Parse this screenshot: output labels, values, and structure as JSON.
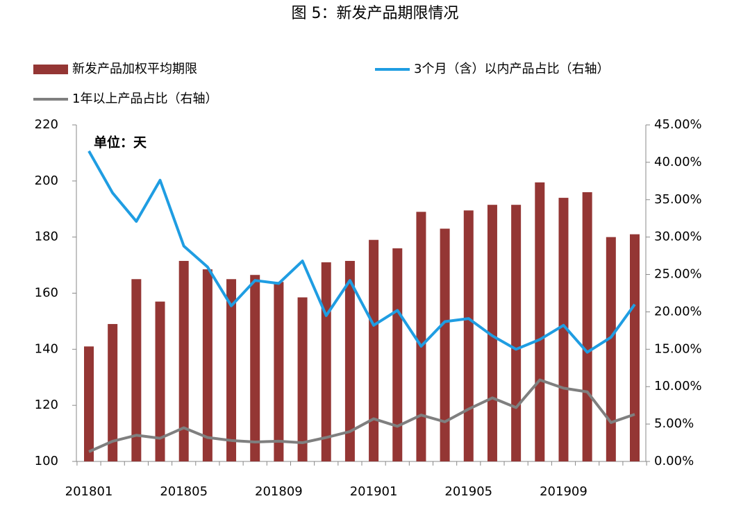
{
  "chart_data": {
    "type": "bar_line",
    "title": "图 5：新发产品期限情况",
    "annotation": "单位：天",
    "categories": [
      "201801",
      null,
      null,
      null,
      "201805",
      null,
      null,
      null,
      "201809",
      null,
      null,
      null,
      "201901",
      null,
      null,
      null,
      "201905",
      null,
      null,
      null,
      "201909",
      null,
      null,
      null
    ],
    "series": [
      {
        "name": "新发产品加权平均期限",
        "type": "bar",
        "color": "#943634",
        "values": [
          141,
          149,
          165,
          157,
          171.5,
          168.5,
          165,
          166.5,
          164,
          158.5,
          171,
          171.5,
          179,
          176,
          189,
          183,
          189.5,
          191.5,
          191.5,
          199.5,
          194,
          196,
          180,
          181
        ]
      },
      {
        "name": "3个月（含）以内产品占比（右轴）",
        "type": "line",
        "axis": "y2",
        "color": "#1f9de2",
        "values": [
          41.5,
          35.9,
          32.1,
          37.6,
          28.8,
          26.0,
          20.8,
          24.2,
          23.8,
          26.8,
          19.5,
          24.2,
          18.2,
          20.2,
          15.4,
          18.7,
          19.1,
          16.8,
          15.0,
          16.3,
          18.2,
          14.6,
          16.6,
          21.0
        ]
      },
      {
        "name": "1年以上产品占比（右轴）",
        "type": "line",
        "axis": "y2",
        "color": "#7f7f7f",
        "values": [
          1.3,
          2.7,
          3.5,
          3.1,
          4.5,
          3.2,
          2.8,
          2.6,
          2.7,
          2.5,
          3.2,
          4.0,
          5.7,
          4.7,
          6.2,
          5.3,
          7.0,
          8.5,
          7.2,
          10.9,
          9.8,
          9.3,
          5.2,
          6.3
        ]
      }
    ],
    "ylim": [
      100,
      220
    ],
    "yticks": [
      100,
      120,
      140,
      160,
      180,
      200,
      220
    ],
    "y2lim": [
      0,
      45
    ],
    "y2ticks": [
      {
        "value": 0,
        "label": "0.00%"
      },
      {
        "value": 5,
        "label": "5.00%"
      },
      {
        "value": 10,
        "label": "10.00%"
      },
      {
        "value": 15,
        "label": "15.00%"
      },
      {
        "value": 20,
        "label": "20.00%"
      },
      {
        "value": 25,
        "label": "25.00%"
      },
      {
        "value": 30,
        "label": "30.00%"
      },
      {
        "value": 35,
        "label": "35.00%"
      },
      {
        "value": 40,
        "label": "40.00%"
      },
      {
        "value": 45,
        "label": "45.00%"
      }
    ],
    "grid": false,
    "legend": "top"
  }
}
